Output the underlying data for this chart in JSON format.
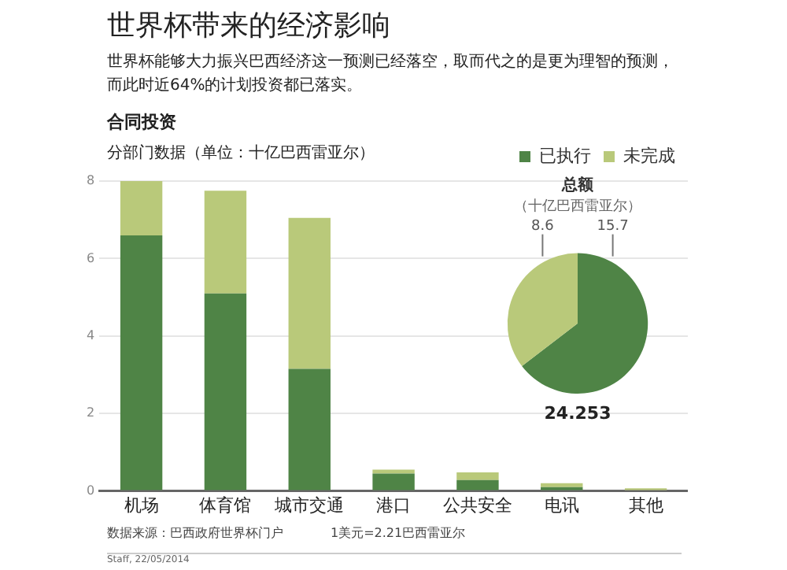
{
  "chart_data": [
    {
      "type": "bar",
      "title": "世界杯带来的经济影响",
      "subtitle": "世界杯能够大力振兴巴西经济这一预测已经落空，取而代之的是更为理智的预测，而此时近64%的计划投资都已落实。",
      "ylabel": "分部门数据（单位：十亿巴西雷亚尔）",
      "annotations": [
        "合同投资",
        "数据来源：巴西政府世界杯门户",
        "1美元=2.21巴西雷亚尔",
        "Staff, 22/05/2014"
      ],
      "categories": [
        "机场",
        "体育馆",
        "城市交通",
        "港口",
        "公共安全",
        "电讯",
        "其他"
      ],
      "series": [
        {
          "name": "已执行",
          "color": "#4f8446",
          "values": [
            6.6,
            5.1,
            3.15,
            0.45,
            0.28,
            0.1,
            0
          ]
        },
        {
          "name": "未完成",
          "color": "#b9c97a",
          "values": [
            1.4,
            2.65,
            3.9,
            0.1,
            0.2,
            0.1,
            0.07
          ]
        }
      ],
      "stacked": true,
      "ylim": [
        0,
        8
      ],
      "yticks": [
        0,
        2,
        4,
        6,
        8
      ],
      "grid": "y",
      "legend": "top right"
    },
    {
      "type": "pie",
      "title": "总额",
      "subtitle": "（十亿巴西雷亚尔）",
      "categories": [
        null,
        null
      ],
      "values": [
        15.7,
        8.6
      ],
      "colors": [
        "#4f8446",
        "#b9c97a"
      ],
      "data_labels": true,
      "annotations": [
        "24.253"
      ]
    }
  ]
}
